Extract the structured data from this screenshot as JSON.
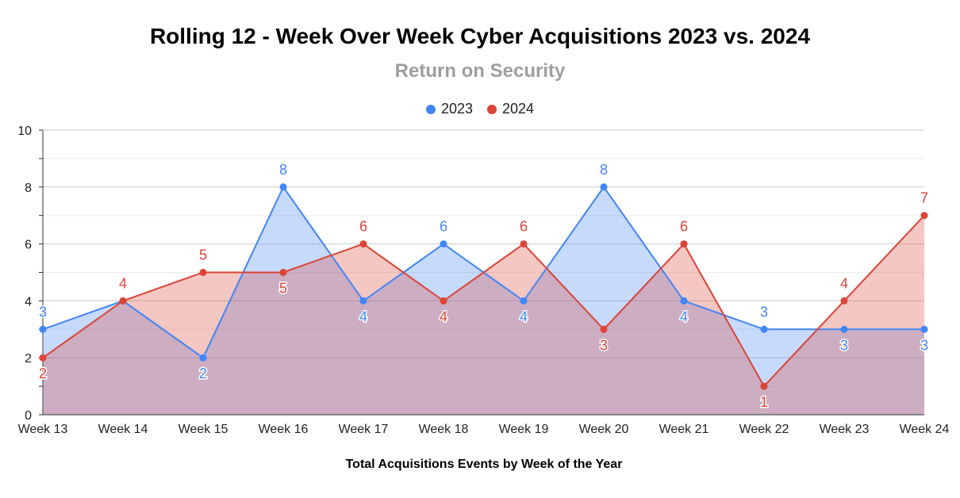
{
  "chart_data": {
    "type": "area",
    "title": "Rolling 12 - Week Over Week Cyber Acquisitions 2023 vs. 2024",
    "subtitle": "Return on Security",
    "xlabel": "Total Acquisitions Events by Week of the Year",
    "ylabel": "",
    "ylim": [
      0,
      10
    ],
    "yticks": [
      "0",
      "2",
      "4",
      "6",
      "8",
      "10"
    ],
    "grid": true,
    "legend_position": "top",
    "categories": [
      "Week 13",
      "Week 14",
      "Week 15",
      "Week 16",
      "Week 17",
      "Week 18",
      "Week 19",
      "Week 20",
      "Week 21",
      "Week 22",
      "Week 23",
      "Week 24"
    ],
    "series": [
      {
        "name": "2023",
        "color": "#4285f4",
        "values": [
          3,
          4,
          2,
          8,
          4,
          6,
          4,
          8,
          4,
          3,
          3,
          3
        ]
      },
      {
        "name": "2024",
        "color": "#db4437",
        "values": [
          2,
          4,
          5,
          5,
          6,
          4,
          6,
          3,
          6,
          1,
          4,
          7
        ]
      }
    ]
  }
}
